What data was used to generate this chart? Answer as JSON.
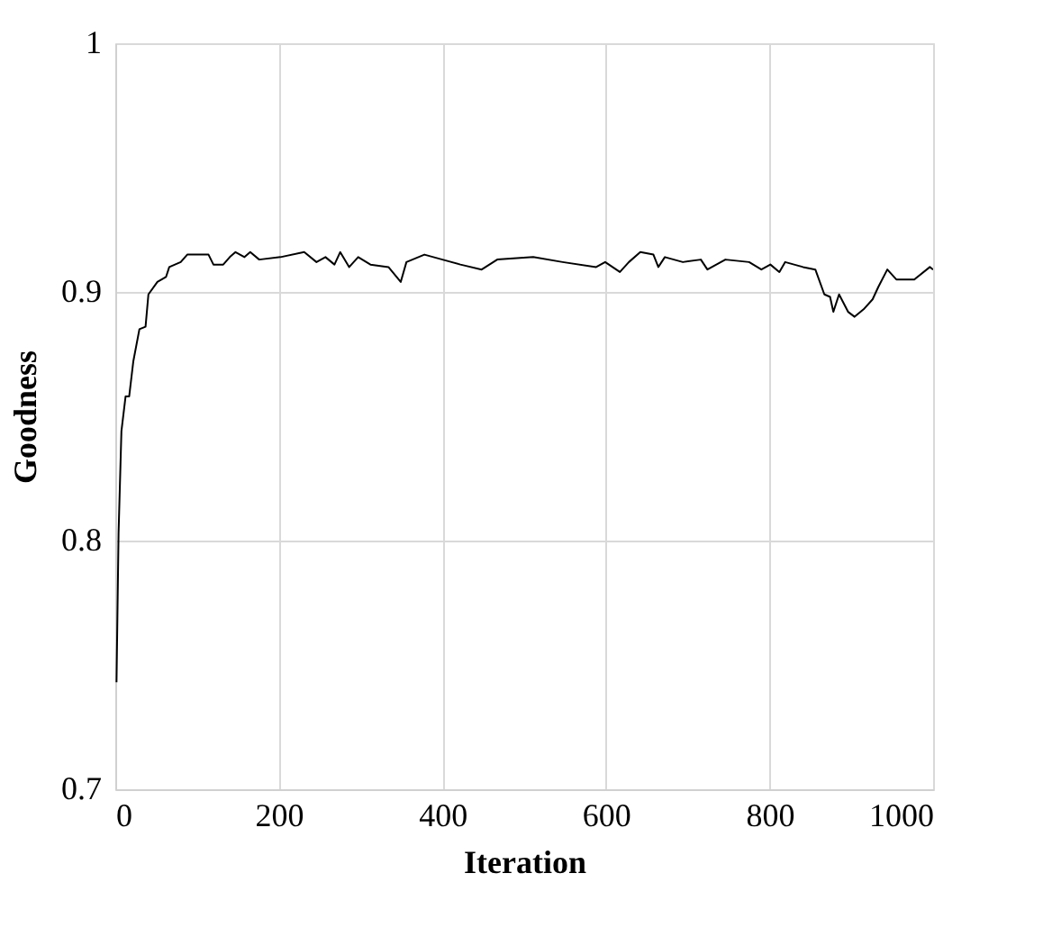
{
  "chart_data": {
    "type": "line",
    "xlabel": "Iteration",
    "ylabel": "Goodness",
    "xlim": [
      0,
      1000
    ],
    "xticks": [
      0,
      200,
      400,
      600,
      800,
      1000
    ],
    "ylim": [
      0.7,
      1
    ],
    "yticks": [
      {
        "value": 0.7,
        "label": "0.7"
      },
      {
        "value": 0.8,
        "label": "0.8"
      },
      {
        "value": 0.9,
        "label": "0.9"
      },
      {
        "value": 1,
        "label": "1"
      }
    ],
    "grid": true,
    "marker": "none",
    "line_style": "solid",
    "series": [
      {
        "color": "#000000",
        "x": [
          1.5,
          4,
          7.5,
          12.6,
          17,
          22,
          29.5,
          37,
          40.5,
          51.5,
          62,
          66,
          80,
          88,
          114,
          120,
          132,
          140,
          147,
          158,
          165,
          176,
          202,
          231,
          246,
          257,
          268,
          275,
          286,
          297,
          312,
          334,
          349,
          356,
          378,
          400,
          422,
          448,
          467,
          511,
          547,
          588,
          599,
          617,
          628,
          642,
          658,
          664,
          672,
          694,
          716,
          724,
          746,
          775,
          790,
          801,
          812,
          819,
          841,
          856,
          867,
          874,
          878,
          885,
          896,
          904,
          915,
          926,
          933,
          944,
          955,
          977,
          996,
          1000
        ],
        "values": [
          0.743,
          0.803,
          0.844,
          0.858,
          0.858,
          0.872,
          0.885,
          0.886,
          0.899,
          0.904,
          0.906,
          0.91,
          0.912,
          0.915,
          0.915,
          0.911,
          0.911,
          0.914,
          0.916,
          0.914,
          0.916,
          0.913,
          0.914,
          0.916,
          0.912,
          0.914,
          0.911,
          0.916,
          0.91,
          0.914,
          0.911,
          0.91,
          0.904,
          0.912,
          0.915,
          0.913,
          0.911,
          0.909,
          0.913,
          0.914,
          0.912,
          0.91,
          0.912,
          0.908,
          0.912,
          0.916,
          0.915,
          0.91,
          0.914,
          0.912,
          0.913,
          0.909,
          0.913,
          0.912,
          0.909,
          0.911,
          0.908,
          0.912,
          0.91,
          0.909,
          0.899,
          0.898,
          0.892,
          0.899,
          0.892,
          0.89,
          0.893,
          0.897,
          0.902,
          0.909,
          0.905,
          0.905,
          0.91,
          0.909
        ]
      }
    ]
  }
}
